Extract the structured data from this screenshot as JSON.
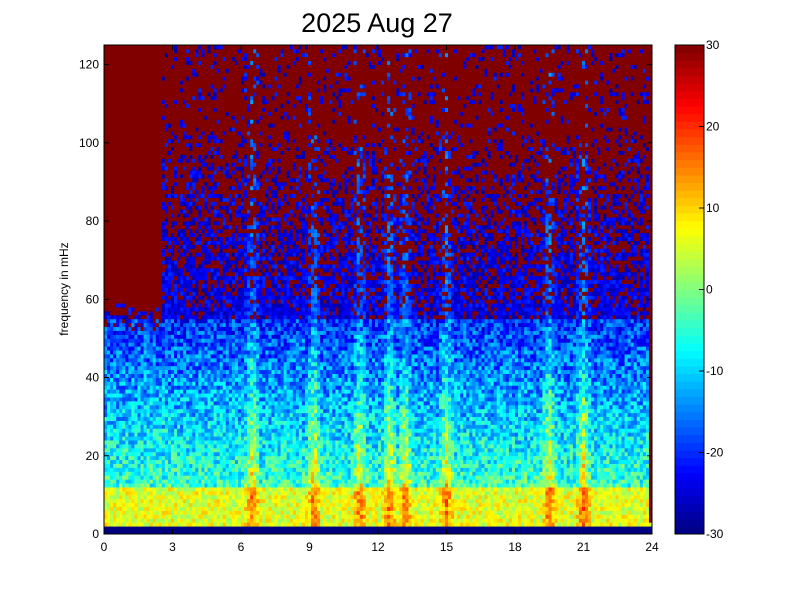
{
  "chart_data": {
    "type": "heatmap",
    "title": "2025 Aug 27",
    "xlabel": "",
    "ylabel": "frequency in mHz",
    "xlim": [
      0,
      24
    ],
    "ylim": [
      0,
      125
    ],
    "x_ticks": [
      0,
      3,
      6,
      9,
      12,
      15,
      18,
      21,
      24
    ],
    "y_ticks": [
      0,
      20,
      40,
      60,
      80,
      100,
      120
    ],
    "colorbar": {
      "range": [
        -30,
        30
      ],
      "ticks": [
        -30,
        -20,
        -10,
        0,
        10,
        20,
        30
      ],
      "colormap": "jet"
    },
    "description_bands": [
      {
        "f_range": [
          0,
          2
        ],
        "level": -30
      },
      {
        "f_range": [
          2,
          12
        ],
        "level": 8
      },
      {
        "f_range": [
          12,
          30
        ],
        "level": -12
      },
      {
        "f_range": [
          30,
          55
        ],
        "level": -14
      },
      {
        "f_range": [
          55,
          80
        ],
        "level": -24
      },
      {
        "f_range": [
          80,
          125
        ],
        "level": 30
      }
    ],
    "bursts_hours": [
      6.5,
      9.2,
      11.2,
      12.5,
      13.2,
      15.0,
      19.5,
      21.0
    ],
    "saturated_block": {
      "hours": [
        0,
        2.6
      ],
      "f_from": 52,
      "value": 30
    }
  },
  "colors": {
    "background": "#ffffff",
    "axis": "#000000",
    "saturated": "#800000"
  }
}
